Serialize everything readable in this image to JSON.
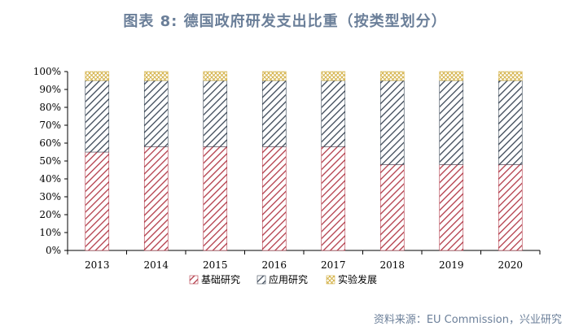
{
  "title": "图表 8:    德国政府研发支出比重（按类型划分）",
  "source": "资料来源：EU Commission，兴业研究",
  "chart_data": {
    "type": "bar",
    "stacked": true,
    "percent": true,
    "categories": [
      "2013",
      "2014",
      "2015",
      "2016",
      "2017",
      "2018",
      "2019",
      "2020"
    ],
    "series": [
      {
        "name": "基础研究",
        "values": [
          55,
          58,
          58,
          58,
          58,
          48,
          48,
          48
        ]
      },
      {
        "name": "应用研究",
        "values": [
          40,
          37,
          37,
          37,
          37,
          47,
          47,
          47
        ]
      },
      {
        "name": "实验发展",
        "values": [
          5,
          5,
          5,
          5,
          5,
          5,
          5,
          5
        ]
      }
    ],
    "ylim": [
      0,
      100
    ],
    "yticks": [
      "0%",
      "10%",
      "20%",
      "30%",
      "40%",
      "50%",
      "60%",
      "70%",
      "80%",
      "90%",
      "100%"
    ],
    "legend_position": "bottom",
    "grid": false,
    "colors": {
      "基础研究": "#b23a48",
      "应用研究": "#3a4656",
      "实验发展": "#d4b24a"
    }
  }
}
